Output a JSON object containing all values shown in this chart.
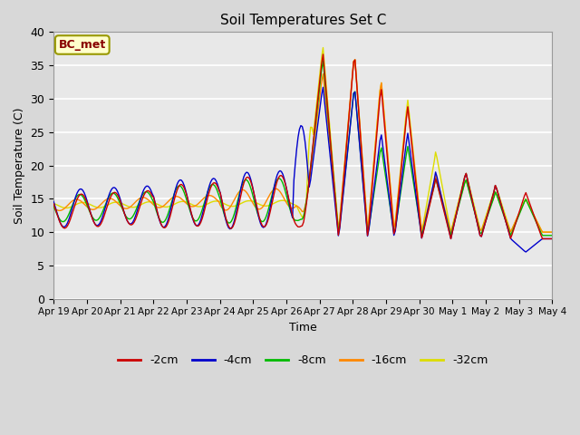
{
  "title": "Soil Temperatures Set C",
  "xlabel": "Time",
  "ylabel": "Soil Temperature (C)",
  "annotation": "BC_met",
  "ylim": [
    0,
    40
  ],
  "series_colors": {
    "-2cm": "#cc0000",
    "-4cm": "#0000cc",
    "-8cm": "#00bb00",
    "-16cm": "#ff8800",
    "-32cm": "#dddd00"
  },
  "legend_colors": [
    "#cc0000",
    "#0000cc",
    "#00bb00",
    "#ff8800",
    "#dddd00"
  ],
  "legend_labels": [
    "-2cm",
    "-4cm",
    "-8cm",
    "-16cm",
    "-32cm"
  ],
  "background_color": "#e8e8e8",
  "tick_labels": [
    "Apr 19",
    "Apr 20",
    "Apr 21",
    "Apr 22",
    "Apr 23",
    "Apr 24",
    "Apr 25",
    "Apr 26",
    "Apr 27",
    "Apr 28",
    "Apr 29",
    "Apr 30",
    "May 1",
    "May 2",
    "May 3",
    "May 4"
  ],
  "yticks": [
    0,
    5,
    10,
    15,
    20,
    25,
    30,
    35,
    40
  ],
  "figsize": [
    6.4,
    4.8
  ],
  "dpi": 100
}
